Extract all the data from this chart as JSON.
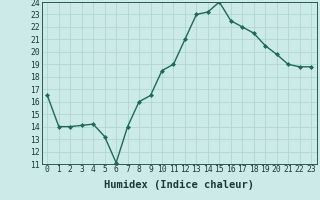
{
  "x": [
    0,
    1,
    2,
    3,
    4,
    5,
    6,
    7,
    8,
    9,
    10,
    11,
    12,
    13,
    14,
    15,
    16,
    17,
    18,
    19,
    20,
    21,
    22,
    23
  ],
  "y": [
    16.5,
    14.0,
    14.0,
    14.1,
    14.2,
    13.2,
    11.1,
    14.0,
    16.0,
    16.5,
    18.5,
    19.0,
    21.0,
    23.0,
    23.2,
    24.0,
    22.5,
    22.0,
    21.5,
    20.5,
    19.8,
    19.0,
    18.8,
    18.8
  ],
  "line_color": "#1a6b5a",
  "marker": "D",
  "marker_size": 2.0,
  "bg_color": "#cceae8",
  "grid_color": "#aad4d0",
  "xlabel": "Humidex (Indice chaleur)",
  "ylim": [
    11,
    24
  ],
  "xlim": [
    -0.5,
    23.5
  ],
  "yticks": [
    11,
    12,
    13,
    14,
    15,
    16,
    17,
    18,
    19,
    20,
    21,
    22,
    23,
    24
  ],
  "xticks": [
    0,
    1,
    2,
    3,
    4,
    5,
    6,
    7,
    8,
    9,
    10,
    11,
    12,
    13,
    14,
    15,
    16,
    17,
    18,
    19,
    20,
    21,
    22,
    23
  ],
  "xlabel_fontsize": 7.5,
  "tick_fontsize": 5.8,
  "line_width": 1.0
}
